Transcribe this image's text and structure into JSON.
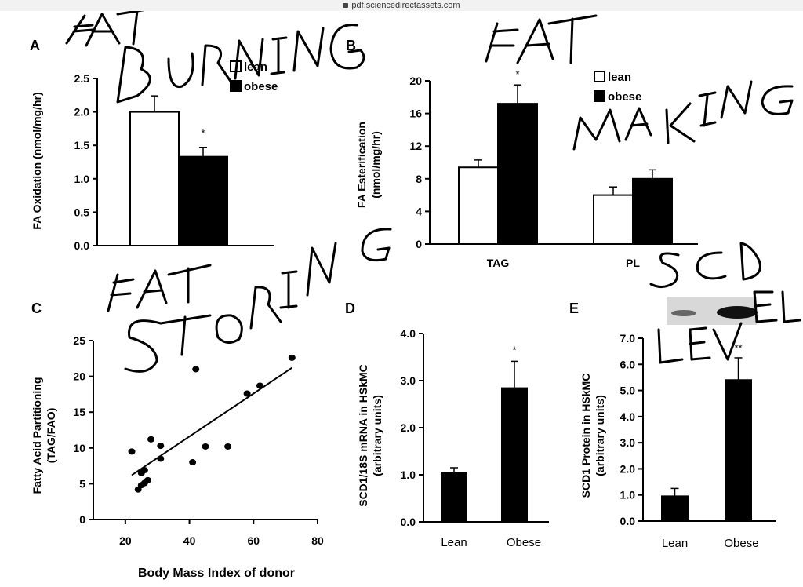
{
  "browser": {
    "url": "pdf.sciencedirectassets.com",
    "icon": "lock-icon"
  },
  "colors": {
    "lean": "#ffffff",
    "obese": "#000000",
    "ink": "#000000"
  },
  "annotations": [
    "FAT BURNING",
    "FAT MAKING",
    "FAT STORING",
    "SCD LEVEL"
  ],
  "chart_data": [
    {
      "panel": "A",
      "type": "bar",
      "categories": [
        "lean",
        "obese"
      ],
      "values": [
        2.0,
        1.33
      ],
      "errors": [
        0.24,
        0.14
      ],
      "significance": [
        "",
        "*"
      ],
      "ylabel": "FA Oxidation (nmol/mg/hr)",
      "ylim": [
        0,
        2.5
      ],
      "yticks": [
        "0.0",
        "0.5",
        "1.0",
        "1.5",
        "2.0",
        "2.5"
      ],
      "legend": [
        "lean",
        "obese"
      ]
    },
    {
      "panel": "B",
      "type": "bar",
      "categories": [
        "TAG",
        "PL"
      ],
      "series": [
        {
          "name": "lean",
          "values": [
            9.4,
            6.0
          ],
          "errors": [
            0.9,
            1.0
          ]
        },
        {
          "name": "obese",
          "values": [
            17.2,
            8.0
          ],
          "errors": [
            2.3,
            1.1
          ]
        }
      ],
      "significance": [
        "*",
        ""
      ],
      "ylabel": "FA Esterification (nmol/mg/hr)",
      "ylim": [
        0,
        20
      ],
      "yticks": [
        "0",
        "4",
        "8",
        "12",
        "16",
        "20"
      ],
      "legend": [
        "lean",
        "obese"
      ]
    },
    {
      "panel": "C",
      "type": "scatter",
      "x": [
        22,
        24,
        25,
        25,
        26,
        26,
        27,
        28,
        31,
        31,
        41,
        42,
        45,
        52,
        58,
        62,
        72
      ],
      "y": [
        9.5,
        4.2,
        4.8,
        6.5,
        5.1,
        6.9,
        5.5,
        11.2,
        8.5,
        10.3,
        8.0,
        21.0,
        10.2,
        10.2,
        17.6,
        18.7,
        22.6
      ],
      "fit": {
        "x": [
          22,
          72
        ],
        "y": [
          6.2,
          21.2
        ]
      },
      "xlabel": "Body Mass Index of donor",
      "ylabel": "Fatty Acid Partitioning (TAG/FAO)",
      "xlim": [
        10,
        80
      ],
      "xticks": [
        "20",
        "40",
        "60",
        "80"
      ],
      "ylim": [
        0,
        25
      ],
      "yticks": [
        "0",
        "5",
        "10",
        "15",
        "20",
        "25"
      ]
    },
    {
      "panel": "D",
      "type": "bar",
      "categories": [
        "Lean",
        "Obese"
      ],
      "values": [
        1.05,
        2.84
      ],
      "errors": [
        0.1,
        0.57
      ],
      "significance": [
        "",
        "*"
      ],
      "ylabel": "SCD1/18S mRNA in HSkMC (arbitrary units)",
      "ylim": [
        0,
        4
      ],
      "yticks": [
        "0.0",
        "1.0",
        "2.0",
        "3.0",
        "4.0"
      ]
    },
    {
      "panel": "E",
      "type": "bar",
      "categories": [
        "Lean",
        "Obese"
      ],
      "values": [
        0.95,
        5.4
      ],
      "errors": [
        0.3,
        0.85
      ],
      "significance": [
        "",
        "**"
      ],
      "ylabel": "SCD1 Protein in HSkMC (arbitrary units)",
      "ylim": [
        0,
        7
      ],
      "yticks": [
        "0.0",
        "1.0",
        "2.0",
        "3.0",
        "4.0",
        "5.0",
        "6.0",
        "7.0"
      ]
    }
  ]
}
